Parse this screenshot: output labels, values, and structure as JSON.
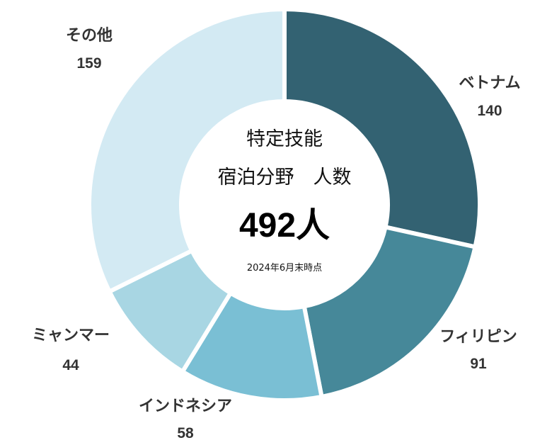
{
  "chart_data": {
    "type": "pie",
    "variant": "donut",
    "title_lines": [
      "特定技能",
      "宿泊分野　人数"
    ],
    "total_label": "492人",
    "note": "2024年6月末時点",
    "slices": [
      {
        "label": "ベトナム",
        "value": 140,
        "color": "#336272"
      },
      {
        "label": "フィリピン",
        "value": 91,
        "color": "#468899"
      },
      {
        "label": "インドネシア",
        "value": 58,
        "color": "#7ABFD4"
      },
      {
        "label": "ミャンマー",
        "value": 44,
        "color": "#A8D6E3"
      },
      {
        "label": "その他",
        "value": 159,
        "color": "#D3EAF3"
      }
    ]
  }
}
